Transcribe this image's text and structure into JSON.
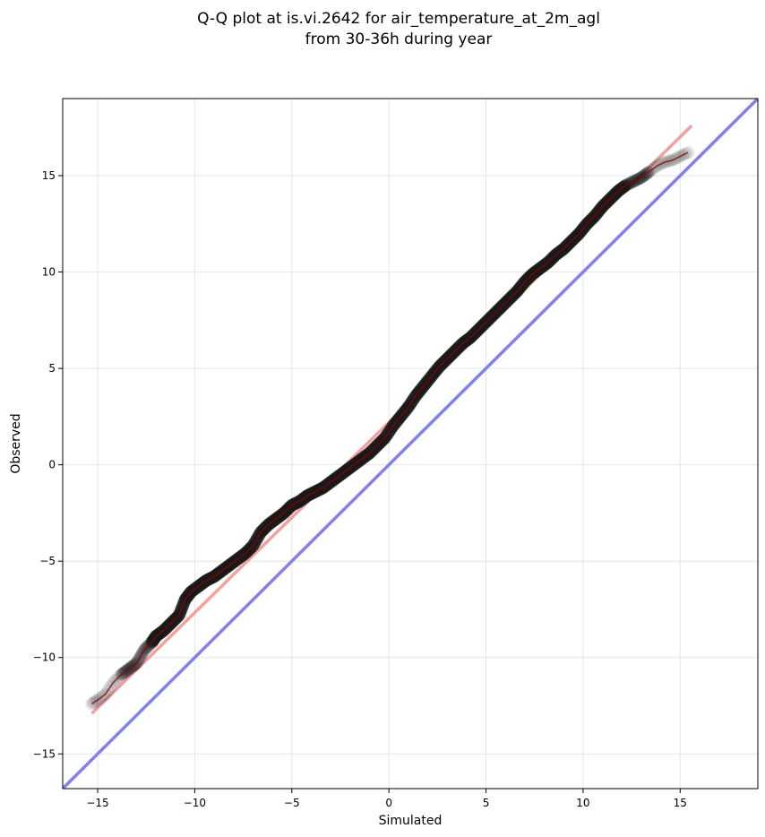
{
  "chart_data": {
    "type": "scatter",
    "title": [
      "Q-Q plot at is.vi.2642 for air_temperature_at_2m_agl",
      "from 30-36h during year"
    ],
    "xlabel": "Simulated",
    "ylabel": "Observed",
    "xlim": [
      -16.8,
      19.0
    ],
    "ylim": [
      -16.8,
      19.0
    ],
    "xticks": [
      -15,
      -10,
      -5,
      0,
      5,
      10,
      15
    ],
    "yticks": [
      -15,
      -10,
      -5,
      0,
      5,
      10,
      15
    ],
    "xtick_labels": [
      "−15",
      "−10",
      "−5",
      "0",
      "5",
      "10",
      "15"
    ],
    "ytick_labels": [
      "−15",
      "−10",
      "−5",
      "0",
      "5",
      "10",
      "15"
    ],
    "grid": true,
    "colors": {
      "points": "#1a1a1a",
      "fit_line": "#f08080",
      "identity_line": "#8080f0",
      "trend_overlay": "#8b0000"
    },
    "qq_points": {
      "x": [
        -15.3,
        -15.0,
        -14.6,
        -14.2,
        -13.8,
        -13.4,
        -13.0,
        -12.6,
        -12.2,
        -12.0,
        -11.6,
        -11.2,
        -10.8,
        -10.5,
        -10.2,
        -9.8,
        -9.4,
        -9.0,
        -8.6,
        -8.2,
        -7.8,
        -7.4,
        -7.0,
        -6.6,
        -6.2,
        -5.8,
        -5.4,
        -5.0,
        -4.6,
        -4.2,
        -3.8,
        -3.4,
        -3.0,
        -2.6,
        -2.2,
        -1.8,
        -1.4,
        -1.0,
        -0.6,
        -0.2,
        0.2,
        0.6,
        1.0,
        1.4,
        1.8,
        2.2,
        2.6,
        3.0,
        3.4,
        3.8,
        4.2,
        4.6,
        5.0,
        5.4,
        5.8,
        6.2,
        6.6,
        7.0,
        7.4,
        7.8,
        8.2,
        8.6,
        9.0,
        9.4,
        9.8,
        10.2,
        10.6,
        11.0,
        11.4,
        11.8,
        12.2,
        12.6,
        13.0,
        13.4,
        13.8,
        14.2,
        14.6,
        15.0,
        15.4
      ],
      "y": [
        -12.4,
        -12.2,
        -11.9,
        -11.3,
        -10.9,
        -10.6,
        -10.3,
        -9.6,
        -9.2,
        -8.9,
        -8.6,
        -8.2,
        -7.8,
        -7.0,
        -6.6,
        -6.3,
        -6.0,
        -5.8,
        -5.5,
        -5.2,
        -4.9,
        -4.6,
        -4.2,
        -3.5,
        -3.1,
        -2.8,
        -2.5,
        -2.1,
        -1.9,
        -1.6,
        -1.4,
        -1.2,
        -0.9,
        -0.6,
        -0.3,
        0.0,
        0.3,
        0.6,
        1.0,
        1.4,
        2.0,
        2.5,
        3.0,
        3.6,
        4.1,
        4.6,
        5.1,
        5.5,
        5.9,
        6.3,
        6.6,
        7.0,
        7.4,
        7.8,
        8.2,
        8.6,
        9.0,
        9.5,
        9.9,
        10.2,
        10.5,
        10.9,
        11.2,
        11.6,
        12.0,
        12.5,
        12.9,
        13.4,
        13.8,
        14.2,
        14.5,
        14.7,
        14.9,
        15.2,
        15.5,
        15.7,
        15.8,
        16.0,
        16.2
      ]
    },
    "fit_line": {
      "x": [
        -15.3,
        15.6
      ],
      "y": [
        -12.9,
        17.6
      ]
    },
    "identity_line": {
      "x": [
        -16.8,
        19.0
      ],
      "y": [
        -16.8,
        19.0
      ]
    }
  }
}
